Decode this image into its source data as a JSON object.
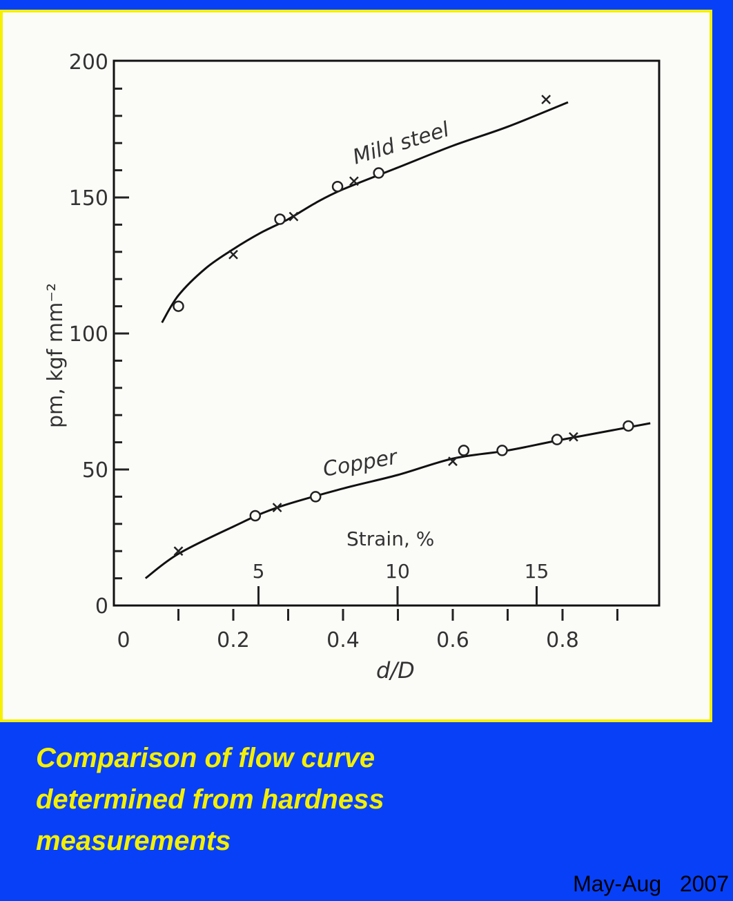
{
  "caption": {
    "line1": "Comparison of flow curve",
    "line2": "determined from hardness",
    "line3": "measurements"
  },
  "footer": "May-Aug   2007",
  "colors": {
    "background": "#0840f8",
    "frame": "#f4f000",
    "caption": "#f4f000"
  },
  "chart_data": {
    "type": "scatter",
    "xlabel": "d/D",
    "ylabel": "pm, kgf mm⁻²",
    "secondary_xlabel": "Strain, %",
    "xlim": [
      0,
      1.0
    ],
    "ylim": [
      0,
      200
    ],
    "x_ticks": [
      "0",
      "0.2",
      "0.4",
      "0.6",
      "0.8"
    ],
    "x_tick_values": [
      0,
      0.2,
      0.4,
      0.6,
      0.8
    ],
    "y_ticks": [
      "0",
      "50",
      "100",
      "150",
      "200"
    ],
    "y_tick_values": [
      0,
      50,
      100,
      150,
      200
    ],
    "strain_ticks": [
      "5",
      "10",
      "15"
    ],
    "strain_tick_values": [
      5,
      10,
      15
    ],
    "grid": false,
    "series": [
      {
        "name": "Mild steel",
        "curve": [
          [
            0.07,
            104
          ],
          [
            0.1,
            114
          ],
          [
            0.15,
            124
          ],
          [
            0.2,
            131
          ],
          [
            0.25,
            137
          ],
          [
            0.3,
            142
          ],
          [
            0.35,
            148
          ],
          [
            0.4,
            153
          ],
          [
            0.5,
            161
          ],
          [
            0.6,
            169
          ],
          [
            0.7,
            176
          ],
          [
            0.81,
            185
          ]
        ],
        "circles": [
          [
            0.1,
            110
          ],
          [
            0.285,
            142
          ],
          [
            0.39,
            154
          ],
          [
            0.465,
            159
          ]
        ],
        "crosses": [
          [
            0.2,
            129
          ],
          [
            0.31,
            143
          ],
          [
            0.42,
            156
          ],
          [
            0.77,
            186
          ]
        ]
      },
      {
        "name": "Copper",
        "curve": [
          [
            0.04,
            10
          ],
          [
            0.1,
            19
          ],
          [
            0.2,
            29
          ],
          [
            0.28,
            36
          ],
          [
            0.4,
            43
          ],
          [
            0.5,
            48
          ],
          [
            0.6,
            54
          ],
          [
            0.7,
            57
          ],
          [
            0.8,
            61
          ],
          [
            0.96,
            67
          ]
        ],
        "circles": [
          [
            0.24,
            33
          ],
          [
            0.35,
            40
          ],
          [
            0.62,
            57
          ],
          [
            0.69,
            57
          ],
          [
            0.79,
            61
          ],
          [
            0.92,
            66
          ]
        ],
        "crosses": [
          [
            0.1,
            20
          ],
          [
            0.28,
            36
          ],
          [
            0.6,
            53
          ],
          [
            0.82,
            62
          ]
        ]
      }
    ]
  }
}
